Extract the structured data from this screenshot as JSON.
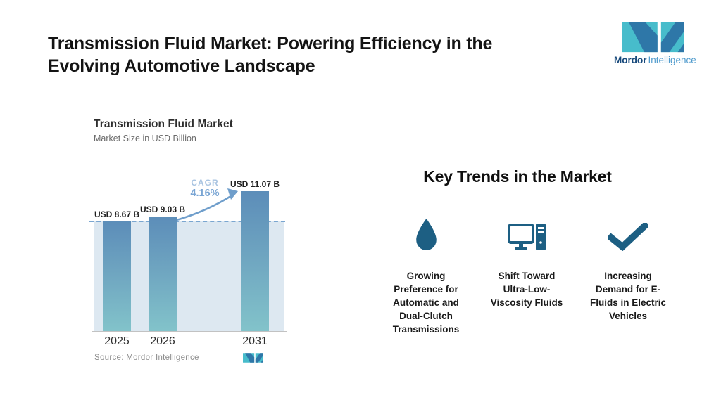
{
  "page": {
    "title": "Transmission Fluid Market: Powering Efficiency in the\nEvolving Automotive Landscape"
  },
  "brand": {
    "name_bold": "Mordor",
    "name_light": "Intelligence",
    "colors": {
      "teal": "#47bccb",
      "blue": "#2e77a8",
      "text_dark": "#17497b",
      "text_light": "#4f9bcd"
    }
  },
  "chart_data": {
    "type": "bar",
    "title": "Transmission Fluid Market",
    "subtitle": "Market Size in USD Billion",
    "categories": [
      "2025",
      "2026",
      "2031"
    ],
    "values": [
      8.67,
      9.03,
      11.07
    ],
    "value_labels": [
      "USD 8.67 B",
      "USD 9.03 B",
      "USD 11.07 B"
    ],
    "unit": "USD Billion",
    "xlabel": "",
    "ylabel": "",
    "ylim": [
      0,
      12
    ],
    "grid": "off",
    "legend": "none",
    "cagr": {
      "label": "CAGR",
      "value": "4.16%"
    },
    "baseline_value": 8.67,
    "annotations": [
      "dashed reference line at 2025 level",
      "growth arrow from 2026 bar to 2031 bar"
    ],
    "source": "Source: Mordor Intelligence",
    "colors": {
      "bar_top": "#5c8db9",
      "bar_bottom": "#82c3ca",
      "backdrop": "#dde8f1",
      "dash_line": "#7aa6d0",
      "arrow": "#6f9ecb",
      "cagr_label": "#a9c4e1",
      "cagr_value": "#79a5d4"
    }
  },
  "trends": {
    "heading": "Key Trends in the Market",
    "icon_color": "#1d5f83",
    "items": [
      {
        "icon": "droplet-icon",
        "label": "Growing\nPreference for\nAutomatic and\nDual-Clutch\nTransmissions"
      },
      {
        "icon": "desktop-computer-icon",
        "label": "Shift Toward\nUltra-Low-\nViscosity Fluids"
      },
      {
        "icon": "checkmark-icon",
        "label": "Increasing\nDemand for E-\nFluids in Electric\nVehicles"
      }
    ]
  }
}
